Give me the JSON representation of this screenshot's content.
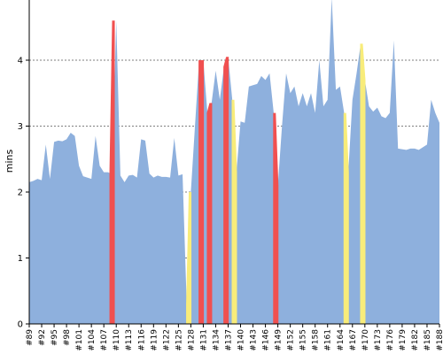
{
  "chart_data": {
    "type": "area",
    "ylabel": "mins",
    "xlabel": "",
    "ylim": [
      0,
      5
    ],
    "yticks": [
      0,
      1,
      2,
      3,
      4
    ],
    "grid": "horizontal dashed",
    "colors": {
      "series": "#8eb0dd",
      "red": "#f05050",
      "yellow": "#f8ec7a",
      "grid": "#555555"
    },
    "x_tick_labels": [
      "#89",
      "#92",
      "#95",
      "#98",
      "#101",
      "#104",
      "#107",
      "#110",
      "#113",
      "#116",
      "#119",
      "#122",
      "#125",
      "#128",
      "#131",
      "#134",
      "#137",
      "#140",
      "#143",
      "#146",
      "#149",
      "#152",
      "#155",
      "#158",
      "#161",
      "#164",
      "#167",
      "#170",
      "#173",
      "#176",
      "#179",
      "#182",
      "#185",
      "#188"
    ],
    "x": [
      89,
      90,
      91,
      92,
      93,
      94,
      95,
      96,
      97,
      98,
      99,
      100,
      101,
      102,
      103,
      104,
      105,
      106,
      107,
      108,
      109,
      110,
      111,
      112,
      113,
      114,
      115,
      116,
      117,
      118,
      119,
      120,
      121,
      122,
      123,
      124,
      125,
      126,
      127,
      128,
      129,
      130,
      131,
      132,
      133,
      134,
      135,
      136,
      137,
      138,
      139,
      140,
      141,
      142,
      143,
      144,
      145,
      146,
      147,
      148,
      149,
      150,
      151,
      152,
      153,
      154,
      155,
      156,
      157,
      158,
      159,
      160,
      161,
      162,
      163,
      164,
      165,
      166,
      167,
      168,
      169,
      170,
      171,
      172,
      173,
      174,
      175,
      176,
      177,
      178,
      179,
      180,
      181,
      182,
      183,
      184,
      185,
      186,
      187,
      188
    ],
    "values": [
      2.15,
      2.17,
      2.2,
      2.18,
      2.72,
      2.2,
      2.76,
      2.78,
      2.77,
      2.8,
      2.9,
      2.85,
      2.4,
      2.24,
      2.22,
      2.2,
      2.85,
      2.4,
      2.3,
      2.3,
      2.27,
      4.6,
      2.25,
      2.15,
      2.25,
      2.26,
      2.22,
      2.8,
      2.78,
      2.28,
      2.22,
      2.25,
      2.23,
      2.23,
      2.22,
      2.82,
      2.25,
      2.27,
      0.3,
      2.0,
      3.0,
      4.0,
      4.0,
      3.2,
      3.35,
      3.84,
      3.4,
      3.9,
      4.05,
      3.4,
      2.3,
      3.07,
      3.05,
      3.6,
      3.62,
      3.64,
      3.76,
      3.7,
      3.8,
      3.2,
      2.1,
      3.0,
      3.8,
      3.5,
      3.6,
      3.3,
      3.5,
      3.3,
      3.5,
      3.2,
      4.0,
      3.3,
      3.4,
      5.1,
      3.55,
      3.6,
      3.2,
      2.3,
      3.4,
      3.8,
      4.25,
      3.7,
      3.3,
      3.22,
      3.28,
      3.15,
      3.12,
      3.2,
      4.3,
      2.66,
      2.65,
      2.64,
      2.66,
      2.66,
      2.64,
      2.68,
      2.72,
      3.4,
      3.2,
      3.05
    ],
    "red_markers": [
      [
        108,
        110
      ],
      [
        130,
        131
      ],
      [
        132,
        133
      ],
      [
        136,
        137
      ],
      [
        148,
        149
      ]
    ],
    "yellow_markers": [
      [
        127,
        128
      ],
      [
        138,
        139
      ],
      [
        165,
        166
      ],
      [
        169,
        170
      ]
    ]
  }
}
